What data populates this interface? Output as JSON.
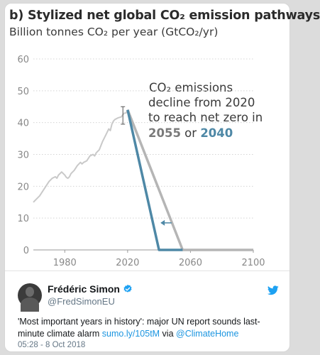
{
  "chart": {
    "title": "b) Stylized net global CO₂ emission pathways",
    "subtitle": "Billion tonnes CO₂ per year (GtCO₂/yr)",
    "annotation": {
      "line1": "CO₂ emissions",
      "line2": "decline from 2020",
      "line3": "to reach net zero in",
      "year_a": "2055",
      "or_text": " or ",
      "year_b": "2040"
    }
  },
  "colors": {
    "history": "#c9c9c9",
    "path_2055": "#b5b5b5",
    "path_2040": "#4e88a6",
    "axis_text": "#888888",
    "grid": "#d4d4d4"
  },
  "chart_data": {
    "type": "line",
    "title": "b) Stylized net global CO₂ emission pathways",
    "ylabel": "Billion tonnes CO₂ per year (GtCO₂/yr)",
    "xlim": [
      1960,
      2100
    ],
    "ylim": [
      0,
      60
    ],
    "x_ticks": [
      1980,
      2020,
      2060,
      2100
    ],
    "y_ticks": [
      0,
      10,
      20,
      30,
      40,
      50,
      60
    ],
    "grid": "horizontal",
    "series": [
      {
        "x": [
          1960,
          1962,
          1964,
          1966,
          1968,
          1970,
          1972,
          1974,
          1975,
          1976,
          1978,
          1979,
          1980,
          1981,
          1982,
          1983,
          1984,
          1986,
          1988,
          1990,
          1991,
          1992,
          1994,
          1996,
          1998,
          1999,
          2000,
          2002,
          2004,
          2006,
          2008,
          2009,
          2010,
          2011,
          2012,
          2014,
          2016,
          2017,
          2018,
          2019,
          2020
        ],
        "y": [
          15,
          16,
          17,
          18.5,
          20,
          21.5,
          22.5,
          23,
          22.5,
          23.5,
          24.5,
          24,
          23.5,
          22.8,
          22.5,
          23,
          24,
          25,
          26.5,
          27.5,
          27,
          27.5,
          28,
          29.5,
          30,
          29.5,
          30.5,
          31.5,
          34,
          36,
          38,
          37.5,
          39.5,
          40.5,
          41,
          41.5,
          41.8,
          42.5,
          43,
          43,
          44
        ]
      },
      {
        "name": "",
        "x": [
          2020,
          2055,
          2100
        ],
        "y": [
          44,
          0,
          0
        ]
      },
      {
        "name": "",
        "x": [
          2020,
          2040,
          2055
        ],
        "y": [
          44,
          0,
          0
        ]
      }
    ],
    "error_bar": {
      "x": 2017,
      "low": 39.5,
      "high": 45
    }
  },
  "tweet": {
    "name": "Frédéric Simon",
    "handle": "@FredSimonEU",
    "text_main": "'Most important years in history': major UN report sounds last-minute climate alarm ",
    "link1": "sumo.ly/105tM",
    "via": " via ",
    "link2": "@ClimateHome",
    "timestamp": "05:28 - 8 Oct 2018"
  }
}
